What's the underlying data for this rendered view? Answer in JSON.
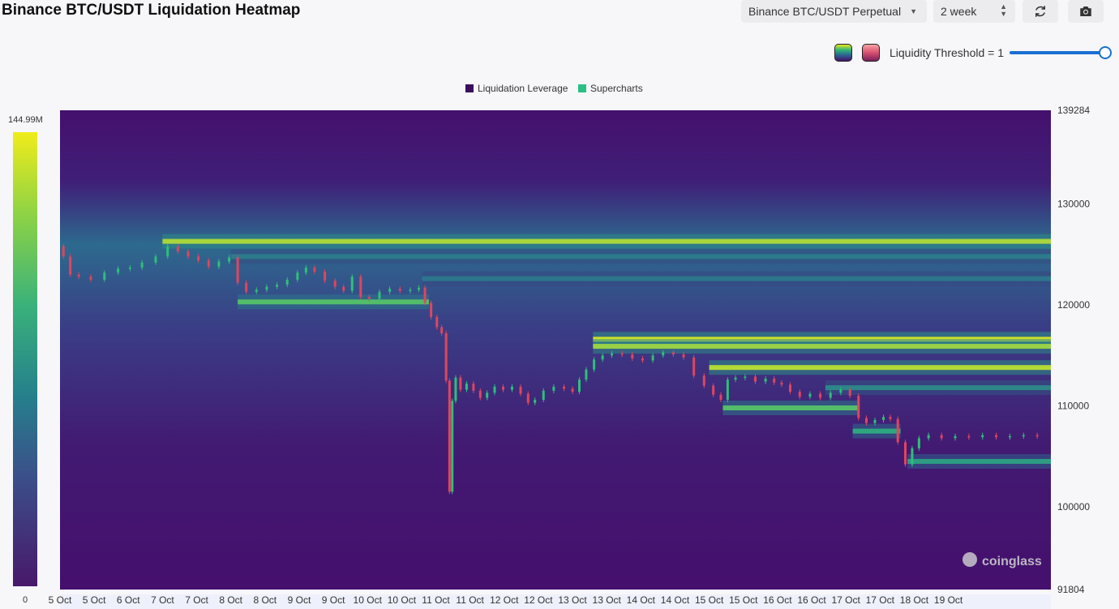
{
  "header": {
    "title": "Binance BTC/USDT Liquidation Heatmap",
    "pair_select": "Binance BTC/USDT Perpetual",
    "range_select": "2 week",
    "refresh_icon": "refresh-icon",
    "camera_icon": "camera-icon"
  },
  "threshold": {
    "label": "Liquidity Threshold = 1",
    "value": 1
  },
  "colors": {
    "low": "#45106d",
    "mid": "#2c8c8c",
    "high": "#e8e81c",
    "bull_candle": "#2fbf7a",
    "bear_candle": "#e0455e"
  },
  "colorbar": {
    "max_label": "144.99M",
    "min_label": "0"
  },
  "watermark": "coinglass",
  "chart_data": {
    "type": "heatmap",
    "title": "Binance BTC/USDT Liquidation Heatmap",
    "legend": [
      "Liquidation Leverage",
      "Supercharts"
    ],
    "legend_colors": [
      "#3a0f5e",
      "#2bbf86"
    ],
    "y_range": [
      91804,
      139284
    ],
    "y_ticks": [
      {
        "value": 139284,
        "label": "139284"
      },
      {
        "value": 130000,
        "label": "130000"
      },
      {
        "value": 120000,
        "label": "120000"
      },
      {
        "value": 110000,
        "label": "110000"
      },
      {
        "value": 100000,
        "label": "100000"
      },
      {
        "value": 91804,
        "label": "91804"
      }
    ],
    "x_range": [
      0,
      14.5
    ],
    "x_ticks": [
      {
        "day": 0,
        "label": "5 Oct"
      },
      {
        "day": 0.5,
        "label": "5 Oct"
      },
      {
        "day": 1,
        "label": "6 Oct"
      },
      {
        "day": 1.5,
        "label": "7 Oct"
      },
      {
        "day": 2,
        "label": "7 Oct"
      },
      {
        "day": 2.5,
        "label": "8 Oct"
      },
      {
        "day": 3,
        "label": "8 Oct"
      },
      {
        "day": 3.5,
        "label": "9 Oct"
      },
      {
        "day": 4,
        "label": "9 Oct"
      },
      {
        "day": 4.5,
        "label": "10 Oct"
      },
      {
        "day": 5,
        "label": "10 Oct"
      },
      {
        "day": 5.5,
        "label": "11 Oct"
      },
      {
        "day": 6,
        "label": "11 Oct"
      },
      {
        "day": 6.5,
        "label": "12 Oct"
      },
      {
        "day": 7,
        "label": "12 Oct"
      },
      {
        "day": 7.5,
        "label": "13 Oct"
      },
      {
        "day": 8,
        "label": "13 Oct"
      },
      {
        "day": 8.5,
        "label": "14 Oct"
      },
      {
        "day": 9,
        "label": "14 Oct"
      },
      {
        "day": 9.5,
        "label": "15 Oct"
      },
      {
        "day": 10,
        "label": "15 Oct"
      },
      {
        "day": 10.5,
        "label": "16 Oct"
      },
      {
        "day": 11,
        "label": "16 Oct"
      },
      {
        "day": 11.5,
        "label": "17 Oct"
      },
      {
        "day": 12,
        "label": "17 Oct"
      },
      {
        "day": 12.5,
        "label": "18 Oct"
      },
      {
        "day": 13,
        "label": "19 Oct"
      }
    ],
    "price_path": [
      [
        0,
        125800
      ],
      [
        0.1,
        124800
      ],
      [
        0.2,
        123000
      ],
      [
        0.35,
        122800
      ],
      [
        0.55,
        122500
      ],
      [
        0.75,
        123200
      ],
      [
        0.95,
        123600
      ],
      [
        1.1,
        123700
      ],
      [
        1.3,
        124200
      ],
      [
        1.5,
        124800
      ],
      [
        1.65,
        125800
      ],
      [
        1.8,
        125300
      ],
      [
        1.95,
        124800
      ],
      [
        2.1,
        124400
      ],
      [
        2.25,
        123800
      ],
      [
        2.4,
        124300
      ],
      [
        2.55,
        124700
      ],
      [
        2.65,
        122200
      ],
      [
        2.8,
        121300
      ],
      [
        2.95,
        121500
      ],
      [
        3.1,
        121800
      ],
      [
        3.25,
        122000
      ],
      [
        3.4,
        122500
      ],
      [
        3.55,
        123200
      ],
      [
        3.65,
        123700
      ],
      [
        3.8,
        123300
      ],
      [
        3.95,
        122400
      ],
      [
        4.1,
        121800
      ],
      [
        4.2,
        121400
      ],
      [
        4.35,
        122800
      ],
      [
        4.45,
        120800
      ],
      [
        4.6,
        120600
      ],
      [
        4.75,
        121300
      ],
      [
        4.9,
        121600
      ],
      [
        5.05,
        121400
      ],
      [
        5.2,
        121500
      ],
      [
        5.3,
        121700
      ],
      [
        5.38,
        120200
      ],
      [
        5.48,
        118800
      ],
      [
        5.55,
        117800
      ],
      [
        5.62,
        117200
      ],
      [
        5.68,
        112500
      ],
      [
        5.72,
        101500
      ],
      [
        5.76,
        110500
      ],
      [
        5.82,
        112800
      ],
      [
        5.9,
        111600
      ],
      [
        6.0,
        112200
      ],
      [
        6.1,
        111500
      ],
      [
        6.2,
        110800
      ],
      [
        6.3,
        111300
      ],
      [
        6.42,
        111900
      ],
      [
        6.55,
        111600
      ],
      [
        6.68,
        111900
      ],
      [
        6.8,
        111200
      ],
      [
        6.9,
        110300
      ],
      [
        7.0,
        110600
      ],
      [
        7.15,
        111500
      ],
      [
        7.3,
        111900
      ],
      [
        7.45,
        111700
      ],
      [
        7.55,
        111400
      ],
      [
        7.65,
        112600
      ],
      [
        7.75,
        113600
      ],
      [
        7.88,
        114600
      ],
      [
        8.0,
        115000
      ],
      [
        8.15,
        115200
      ],
      [
        8.3,
        115100
      ],
      [
        8.45,
        114700
      ],
      [
        8.6,
        114500
      ],
      [
        8.75,
        115000
      ],
      [
        8.9,
        115300
      ],
      [
        9.05,
        115100
      ],
      [
        9.2,
        114800
      ],
      [
        9.35,
        113000
      ],
      [
        9.5,
        112000
      ],
      [
        9.62,
        111100
      ],
      [
        9.72,
        110600
      ],
      [
        9.82,
        112600
      ],
      [
        9.95,
        112800
      ],
      [
        10.1,
        112900
      ],
      [
        10.25,
        112400
      ],
      [
        10.4,
        112700
      ],
      [
        10.5,
        112300
      ],
      [
        10.62,
        112100
      ],
      [
        10.75,
        111400
      ],
      [
        10.9,
        110900
      ],
      [
        11.05,
        111200
      ],
      [
        11.2,
        110800
      ],
      [
        11.35,
        111300
      ],
      [
        11.5,
        111600
      ],
      [
        11.62,
        111000
      ],
      [
        11.75,
        108800
      ],
      [
        11.85,
        108300
      ],
      [
        12.0,
        108600
      ],
      [
        12.1,
        108900
      ],
      [
        12.2,
        108700
      ],
      [
        12.32,
        106400
      ],
      [
        12.42,
        104200
      ],
      [
        12.52,
        105800
      ],
      [
        12.62,
        106800
      ],
      [
        12.8,
        107100
      ],
      [
        13.0,
        106800
      ],
      [
        13.2,
        107000
      ],
      [
        13.4,
        106900
      ],
      [
        13.6,
        107100
      ],
      [
        13.8,
        106900
      ],
      [
        14.0,
        107000
      ],
      [
        14.2,
        107100
      ],
      [
        14.4,
        107000
      ]
    ],
    "bands": [
      {
        "price": 126300,
        "from": 1.5,
        "to": 14.5,
        "intensity": 0.88
      },
      {
        "price": 124800,
        "from": 2.5,
        "to": 14.5,
        "intensity": 0.4
      },
      {
        "price": 122600,
        "from": 5.3,
        "to": 14.5,
        "intensity": 0.38
      },
      {
        "price": 120300,
        "from": 2.6,
        "to": 5.4,
        "intensity": 0.72
      },
      {
        "price": 116600,
        "from": 7.8,
        "to": 14.5,
        "intensity": 0.95
      },
      {
        "price": 115900,
        "from": 7.8,
        "to": 14.5,
        "intensity": 0.85
      },
      {
        "price": 113800,
        "from": 9.5,
        "to": 14.5,
        "intensity": 0.9
      },
      {
        "price": 111800,
        "from": 11.2,
        "to": 14.5,
        "intensity": 0.45
      },
      {
        "price": 109800,
        "from": 9.7,
        "to": 11.7,
        "intensity": 0.72
      },
      {
        "price": 107500,
        "from": 11.6,
        "to": 12.3,
        "intensity": 0.6
      },
      {
        "price": 104500,
        "from": 12.4,
        "to": 14.5,
        "intensity": 0.55
      }
    ]
  }
}
